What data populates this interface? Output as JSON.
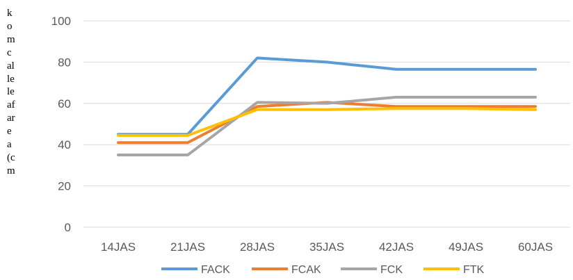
{
  "chart_data": {
    "type": "line",
    "title": "",
    "xlabel": "",
    "ylabel_lines": [
      "k",
      "o",
      "m",
      "c",
      "al",
      "le",
      "le",
      "af",
      "ar",
      "e",
      "a",
      "(c",
      "m"
    ],
    "categories": [
      "14JAS",
      "21JAS",
      "28JAS",
      "35JAS",
      "42JAS",
      "49JAS",
      "60JAS"
    ],
    "yticks": [
      "0",
      "20",
      "40",
      "60",
      "80",
      "100"
    ],
    "ylim": [
      0,
      100
    ],
    "grid": "horizontal",
    "legend_position": "bottom",
    "series": [
      {
        "name": "FACK",
        "color": "#5B9BD5",
        "values": [
          45,
          45,
          82,
          80,
          76.5,
          76.5,
          76.5
        ]
      },
      {
        "name": "FCAK",
        "color": "#ED7D31",
        "values": [
          41,
          41,
          58.5,
          60.5,
          58.5,
          58.5,
          58.5
        ]
      },
      {
        "name": "FCK",
        "color": "#A5A5A5",
        "values": [
          35,
          35,
          60.5,
          60,
          63,
          63,
          63
        ]
      },
      {
        "name": "FTK",
        "color": "#FFC000",
        "values": [
          44.5,
          44.5,
          57,
          57,
          57.5,
          57.5,
          57
        ]
      }
    ]
  }
}
